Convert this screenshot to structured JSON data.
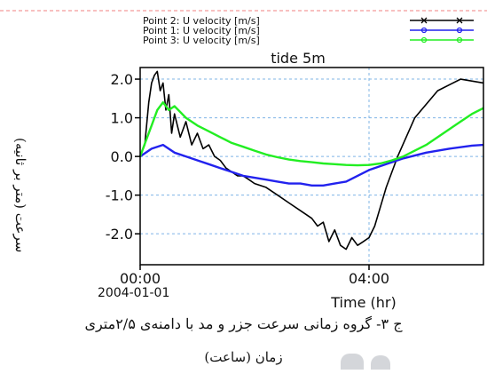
{
  "figure": {
    "caption": "ج ۳- گروه زمانی سرعت جزر و مد با دامنه‌ی ۲/۵متری",
    "xlabel_fa": "زمان (ساعت)",
    "ylabel_fa": "سرعت (متر بر ثانیه)"
  },
  "chart_data": {
    "type": "line",
    "title": "tide 5m",
    "xlabel": "Time (hr)",
    "ylabel": "",
    "xlim": [
      0,
      6
    ],
    "ylim": [
      -2.8,
      2.3
    ],
    "x_ticks": [
      {
        "value": 0,
        "label": "00:00",
        "sublabel": "2004-01-01"
      },
      {
        "value": 4,
        "label": "04:00",
        "sublabel": ""
      }
    ],
    "y_ticks": [
      {
        "value": 2,
        "label": "2.0"
      },
      {
        "value": 1,
        "label": "1.0"
      },
      {
        "value": 0,
        "label": "0.0"
      },
      {
        "value": -1,
        "label": "-1.0"
      },
      {
        "value": -2,
        "label": "-2.0"
      }
    ],
    "grid": true,
    "legend_position": "top",
    "series": [
      {
        "name": "Point 2: U velocity [m/s]",
        "color": "#000000",
        "x": [
          0,
          0.08,
          0.15,
          0.2,
          0.25,
          0.3,
          0.35,
          0.4,
          0.45,
          0.5,
          0.55,
          0.6,
          0.7,
          0.8,
          0.9,
          1.0,
          1.1,
          1.2,
          1.3,
          1.4,
          1.5,
          1.6,
          1.7,
          1.8,
          1.9,
          2.0,
          2.2,
          2.4,
          2.6,
          2.8,
          3.0,
          3.1,
          3.2,
          3.3,
          3.4,
          3.5,
          3.6,
          3.7,
          3.8,
          3.9,
          4.0,
          4.1,
          4.2,
          4.3,
          4.5,
          4.8,
          5.2,
          5.6,
          6.0
        ],
        "y": [
          0.0,
          0.3,
          1.4,
          1.9,
          2.1,
          2.2,
          1.7,
          1.9,
          1.2,
          1.6,
          0.6,
          1.1,
          0.5,
          0.9,
          0.3,
          0.6,
          0.2,
          0.3,
          0.0,
          -0.1,
          -0.3,
          -0.4,
          -0.5,
          -0.5,
          -0.6,
          -0.7,
          -0.8,
          -1.0,
          -1.2,
          -1.4,
          -1.6,
          -1.8,
          -1.7,
          -2.2,
          -1.9,
          -2.3,
          -2.4,
          -2.1,
          -2.3,
          -2.2,
          -2.1,
          -1.8,
          -1.3,
          -0.8,
          0.0,
          1.0,
          1.7,
          2.0,
          1.9
        ]
      },
      {
        "name": "Point 1: U velocity [m/s]",
        "color": "#2222ee",
        "x": [
          0,
          0.2,
          0.4,
          0.6,
          0.8,
          1.0,
          1.2,
          1.4,
          1.6,
          1.8,
          2.0,
          2.2,
          2.4,
          2.6,
          2.8,
          3.0,
          3.2,
          3.4,
          3.6,
          3.8,
          4.0,
          4.3,
          4.6,
          5.0,
          5.4,
          5.8,
          6.0
        ],
        "y": [
          0.0,
          0.2,
          0.3,
          0.1,
          0.0,
          -0.1,
          -0.2,
          -0.3,
          -0.4,
          -0.5,
          -0.55,
          -0.6,
          -0.65,
          -0.7,
          -0.7,
          -0.75,
          -0.75,
          -0.7,
          -0.65,
          -0.5,
          -0.35,
          -0.2,
          -0.05,
          0.1,
          0.2,
          0.28,
          0.3
        ]
      },
      {
        "name": "Point 3: U velocity [m/s]",
        "color": "#22ee22",
        "x": [
          0,
          0.1,
          0.2,
          0.3,
          0.4,
          0.5,
          0.6,
          0.8,
          1.0,
          1.2,
          1.4,
          1.6,
          1.8,
          2.0,
          2.2,
          2.4,
          2.6,
          2.8,
          3.0,
          3.2,
          3.4,
          3.6,
          3.8,
          4.0,
          4.2,
          4.4,
          4.6,
          4.8,
          5.0,
          5.2,
          5.4,
          5.6,
          5.8,
          6.0
        ],
        "y": [
          0.0,
          0.4,
          0.8,
          1.2,
          1.4,
          1.2,
          1.3,
          1.0,
          0.8,
          0.65,
          0.5,
          0.35,
          0.25,
          0.15,
          0.05,
          -0.02,
          -0.08,
          -0.12,
          -0.15,
          -0.18,
          -0.2,
          -0.22,
          -0.23,
          -0.22,
          -0.18,
          -0.1,
          0.0,
          0.15,
          0.3,
          0.5,
          0.7,
          0.9,
          1.1,
          1.25
        ]
      }
    ]
  }
}
